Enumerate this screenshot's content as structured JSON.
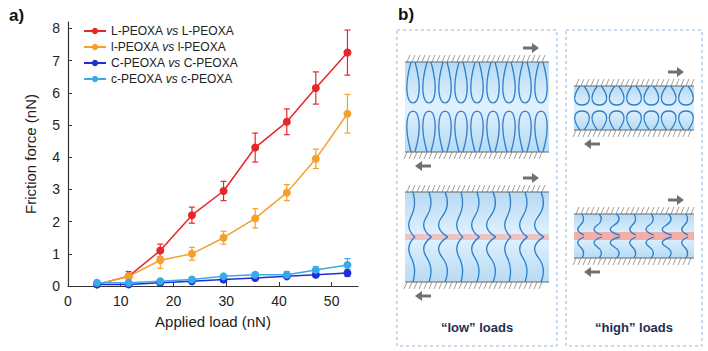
{
  "chart_data": {
    "type": "line",
    "title": "a)",
    "xlabel": "Applied load (nN)",
    "ylabel": "Friction force (nN)",
    "x": [
      5.5,
      11.5,
      17.5,
      23.5,
      29.5,
      35.5,
      41.5,
      47,
      53
    ],
    "series": [
      {
        "name": "L-PEOXA vs L-PEOXA",
        "color": "#e8262a",
        "values": [
          0.05,
          0.3,
          1.1,
          2.2,
          2.95,
          4.3,
          5.1,
          6.15,
          7.25
        ],
        "errors": [
          0.05,
          0.15,
          0.2,
          0.25,
          0.3,
          0.45,
          0.4,
          0.5,
          0.7
        ]
      },
      {
        "name": "l-PEOXA vs l-PEOXA",
        "color": "#f5a02a",
        "values": [
          0.05,
          0.3,
          0.8,
          1.0,
          1.5,
          2.1,
          2.9,
          3.95,
          5.35
        ],
        "errors": [
          0.05,
          0.1,
          0.25,
          0.2,
          0.2,
          0.3,
          0.25,
          0.3,
          0.6
        ]
      },
      {
        "name": "C-PEOXA vs C-PEOXA",
        "color": "#1f2fd6",
        "values": [
          0.05,
          0.05,
          0.1,
          0.15,
          0.2,
          0.25,
          0.3,
          0.35,
          0.4
        ],
        "errors": [
          0.03,
          0.03,
          0.03,
          0.04,
          0.05,
          0.05,
          0.05,
          0.06,
          0.1
        ]
      },
      {
        "name": "c-PEOXA vs c-PEOXA",
        "color": "#3aa9e8",
        "values": [
          0.1,
          0.1,
          0.15,
          0.2,
          0.3,
          0.35,
          0.35,
          0.5,
          0.65
        ],
        "errors": [
          0.05,
          0.05,
          0.05,
          0.05,
          0.05,
          0.05,
          0.1,
          0.1,
          0.2
        ]
      }
    ],
    "xlim": [
      0,
      55
    ],
    "xticks": [
      0,
      10,
      20,
      30,
      40,
      50
    ],
    "ylim": [
      0,
      8.2
    ],
    "yticks": [
      0,
      1,
      2,
      3,
      4,
      5,
      6,
      7,
      8
    ],
    "grid": false,
    "legend": "top-left",
    "marker": "circle",
    "line_style": "solid"
  },
  "diagram": {
    "label": "b)",
    "panels": [
      {
        "caption": "“low” loads"
      },
      {
        "caption": "“high” loads"
      }
    ]
  }
}
